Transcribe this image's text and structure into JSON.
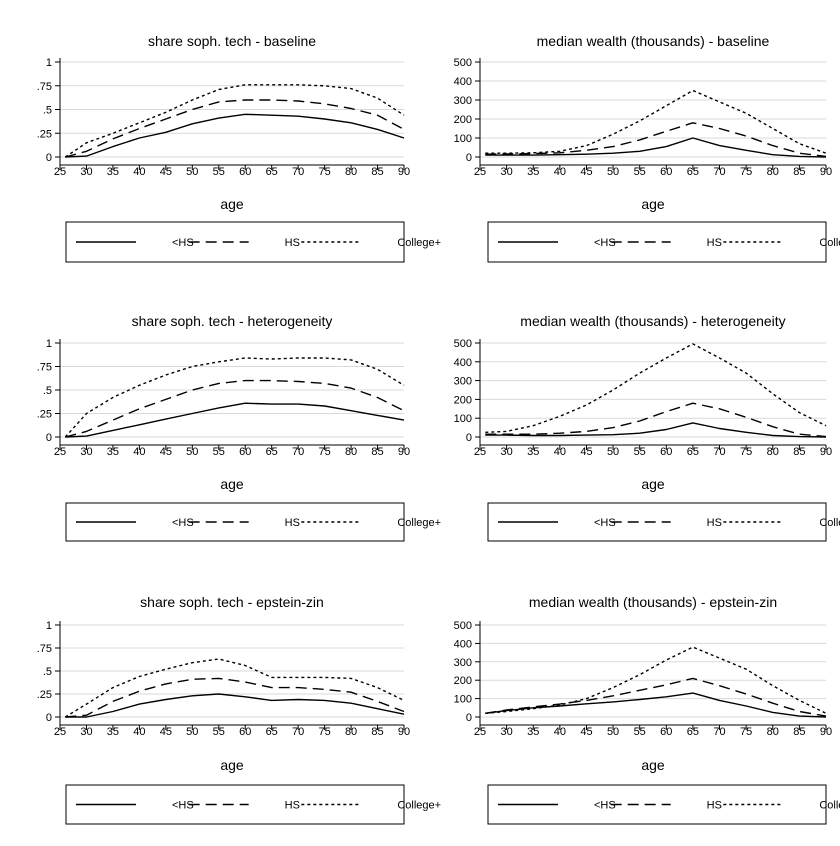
{
  "figure": {
    "legend": [
      {
        "label": "<HS",
        "dash": "solid"
      },
      {
        "label": "HS",
        "dash": "long-dash"
      },
      {
        "label": "College+",
        "dash": "short-dash"
      }
    ]
  },
  "chart_data": [
    {
      "type": "line",
      "title": "share soph. tech - baseline",
      "xlabel": "age",
      "ylabel": "",
      "xlim": [
        25,
        90
      ],
      "ylim": [
        0,
        1
      ],
      "xticks": [
        "25",
        "30",
        "35",
        "40",
        "45",
        "50",
        "55",
        "60",
        "65",
        "70",
        "75",
        "80",
        "85",
        "90"
      ],
      "yticks": [
        "0",
        ".25",
        ".5",
        ".75",
        "1"
      ],
      "grid": "horizontal",
      "legend": "bottom",
      "x": [
        26,
        30,
        35,
        40,
        45,
        50,
        55,
        60,
        65,
        70,
        75,
        80,
        85,
        90
      ],
      "series": [
        {
          "name": "<HS",
          "dash": "solid",
          "values": [
            0,
            0.01,
            0.11,
            0.2,
            0.26,
            0.35,
            0.41,
            0.45,
            0.44,
            0.43,
            0.4,
            0.36,
            0.29,
            0.2
          ]
        },
        {
          "name": "HS",
          "dash": "long-dash",
          "values": [
            0,
            0.06,
            0.19,
            0.3,
            0.4,
            0.5,
            0.58,
            0.6,
            0.6,
            0.59,
            0.56,
            0.51,
            0.44,
            0.29
          ]
        },
        {
          "name": "College+",
          "dash": "short-dash",
          "values": [
            0,
            0.15,
            0.25,
            0.36,
            0.47,
            0.6,
            0.71,
            0.76,
            0.76,
            0.76,
            0.75,
            0.72,
            0.62,
            0.44
          ]
        }
      ]
    },
    {
      "type": "line",
      "title": "median wealth (thousands) - baseline",
      "xlabel": "age",
      "ylabel": "",
      "xlim": [
        25,
        90
      ],
      "ylim": [
        0,
        500
      ],
      "xticks": [
        "25",
        "30",
        "35",
        "40",
        "45",
        "50",
        "55",
        "60",
        "65",
        "70",
        "75",
        "80",
        "85",
        "90"
      ],
      "yticks": [
        "0",
        "100",
        "200",
        "300",
        "400",
        "500"
      ],
      "grid": "horizontal",
      "legend": "bottom",
      "x": [
        26,
        30,
        35,
        40,
        45,
        50,
        55,
        60,
        65,
        70,
        75,
        80,
        85,
        90
      ],
      "series": [
        {
          "name": "<HS",
          "dash": "solid",
          "values": [
            10,
            10,
            10,
            12,
            15,
            20,
            30,
            55,
            100,
            60,
            35,
            12,
            3,
            0
          ]
        },
        {
          "name": "HS",
          "dash": "long-dash",
          "values": [
            15,
            16,
            18,
            22,
            35,
            55,
            90,
            135,
            180,
            150,
            110,
            60,
            20,
            3
          ]
        },
        {
          "name": "College+",
          "dash": "short-dash",
          "values": [
            20,
            20,
            22,
            30,
            60,
            120,
            190,
            270,
            350,
            290,
            230,
            150,
            70,
            20
          ]
        }
      ]
    },
    {
      "type": "line",
      "title": "share soph. tech - heterogeneity",
      "xlabel": "age",
      "ylabel": "",
      "xlim": [
        25,
        90
      ],
      "ylim": [
        0,
        1
      ],
      "xticks": [
        "25",
        "30",
        "35",
        "40",
        "45",
        "50",
        "55",
        "60",
        "65",
        "70",
        "75",
        "80",
        "85",
        "90"
      ],
      "yticks": [
        "0",
        ".25",
        ".5",
        ".75",
        "1"
      ],
      "grid": "horizontal",
      "legend": "bottom",
      "x": [
        26,
        30,
        35,
        40,
        45,
        50,
        55,
        60,
        65,
        70,
        75,
        80,
        85,
        90
      ],
      "series": [
        {
          "name": "<HS",
          "dash": "solid",
          "values": [
            0,
            0.01,
            0.07,
            0.13,
            0.19,
            0.25,
            0.31,
            0.36,
            0.35,
            0.35,
            0.33,
            0.28,
            0.23,
            0.18
          ]
        },
        {
          "name": "HS",
          "dash": "long-dash",
          "values": [
            0,
            0.06,
            0.18,
            0.3,
            0.4,
            0.5,
            0.57,
            0.6,
            0.6,
            0.59,
            0.57,
            0.52,
            0.42,
            0.28
          ]
        },
        {
          "name": "College+",
          "dash": "short-dash",
          "values": [
            0,
            0.25,
            0.42,
            0.55,
            0.66,
            0.75,
            0.8,
            0.84,
            0.83,
            0.84,
            0.84,
            0.82,
            0.72,
            0.55
          ]
        }
      ]
    },
    {
      "type": "line",
      "title": "median wealth (thousands) -  heterogeneity",
      "xlabel": "age",
      "ylabel": "",
      "xlim": [
        25,
        90
      ],
      "ylim": [
        0,
        500
      ],
      "xticks": [
        "25",
        "30",
        "35",
        "40",
        "45",
        "50",
        "55",
        "60",
        "65",
        "70",
        "75",
        "80",
        "85",
        "90"
      ],
      "yticks": [
        "0",
        "100",
        "200",
        "300",
        "400",
        "500"
      ],
      "grid": "horizontal",
      "legend": "bottom",
      "x": [
        26,
        30,
        35,
        40,
        45,
        50,
        55,
        60,
        65,
        70,
        75,
        80,
        85,
        90
      ],
      "series": [
        {
          "name": "<HS",
          "dash": "solid",
          "values": [
            10,
            10,
            8,
            8,
            10,
            12,
            20,
            40,
            75,
            45,
            25,
            8,
            2,
            0
          ]
        },
        {
          "name": "HS",
          "dash": "long-dash",
          "values": [
            15,
            15,
            15,
            20,
            30,
            50,
            85,
            135,
            180,
            150,
            105,
            55,
            15,
            2
          ]
        },
        {
          "name": "College+",
          "dash": "short-dash",
          "values": [
            25,
            30,
            60,
            110,
            170,
            250,
            340,
            420,
            495,
            420,
            340,
            230,
            130,
            60
          ]
        }
      ]
    },
    {
      "type": "line",
      "title": "share soph. tech - epstein-zin",
      "xlabel": "age",
      "ylabel": "",
      "xlim": [
        25,
        90
      ],
      "ylim": [
        0,
        1
      ],
      "xticks": [
        "25",
        "30",
        "35",
        "40",
        "45",
        "50",
        "55",
        "60",
        "65",
        "70",
        "75",
        "80",
        "85",
        "90"
      ],
      "yticks": [
        "0",
        ".25",
        ".5",
        ".75",
        "1"
      ],
      "grid": "horizontal",
      "legend": "bottom",
      "x": [
        26,
        30,
        35,
        40,
        45,
        50,
        55,
        60,
        65,
        70,
        75,
        80,
        85,
        90
      ],
      "series": [
        {
          "name": "<HS",
          "dash": "solid",
          "values": [
            0,
            0,
            0.06,
            0.14,
            0.19,
            0.23,
            0.25,
            0.22,
            0.18,
            0.19,
            0.18,
            0.15,
            0.09,
            0.03
          ]
        },
        {
          "name": "HS",
          "dash": "long-dash",
          "values": [
            0,
            0.02,
            0.17,
            0.28,
            0.36,
            0.41,
            0.42,
            0.38,
            0.32,
            0.32,
            0.3,
            0.27,
            0.17,
            0.06
          ]
        },
        {
          "name": "College+",
          "dash": "short-dash",
          "values": [
            0,
            0.14,
            0.32,
            0.44,
            0.52,
            0.59,
            0.63,
            0.56,
            0.43,
            0.43,
            0.43,
            0.42,
            0.32,
            0.18
          ]
        }
      ]
    },
    {
      "type": "line",
      "title": "median wealth (thousands) - epstein-zin",
      "xlabel": "age",
      "ylabel": "",
      "xlim": [
        25,
        90
      ],
      "ylim": [
        0,
        500
      ],
      "xticks": [
        "25",
        "30",
        "35",
        "40",
        "45",
        "50",
        "55",
        "60",
        "65",
        "70",
        "75",
        "80",
        "85",
        "90"
      ],
      "yticks": [
        "0",
        "100",
        "200",
        "300",
        "400",
        "500"
      ],
      "grid": "horizontal",
      "legend": "bottom",
      "x": [
        26,
        30,
        35,
        40,
        45,
        50,
        55,
        60,
        65,
        70,
        75,
        80,
        85,
        90
      ],
      "series": [
        {
          "name": "<HS",
          "dash": "solid",
          "values": [
            20,
            35,
            50,
            60,
            72,
            82,
            95,
            110,
            130,
            90,
            60,
            25,
            5,
            0
          ]
        },
        {
          "name": "HS",
          "dash": "long-dash",
          "values": [
            20,
            38,
            55,
            70,
            90,
            115,
            145,
            175,
            210,
            170,
            125,
            75,
            30,
            5
          ]
        },
        {
          "name": "College+",
          "dash": "short-dash",
          "values": [
            20,
            30,
            45,
            65,
            100,
            160,
            230,
            310,
            380,
            320,
            260,
            170,
            90,
            20
          ]
        }
      ]
    }
  ]
}
